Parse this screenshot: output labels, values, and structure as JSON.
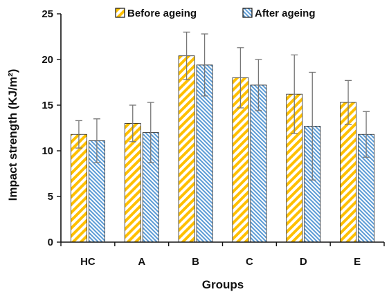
{
  "chart_data": {
    "type": "bar",
    "title": "",
    "xlabel": "Groups",
    "ylabel": "Impact strength (KJ/m²)",
    "ylim": [
      0,
      25
    ],
    "yticks": [
      0,
      5,
      10,
      15,
      20,
      25
    ],
    "grid": false,
    "legend_position": "top",
    "categories": [
      "HC",
      "A",
      "B",
      "C",
      "D",
      "E"
    ],
    "series": [
      {
        "name": "Before ageing",
        "color": "#FFC000",
        "pattern": "diagonal-stripes",
        "values": [
          11.8,
          13.0,
          20.4,
          18.0,
          16.2,
          15.3
        ],
        "error": [
          1.5,
          2.0,
          2.6,
          3.3,
          4.3,
          2.4
        ]
      },
      {
        "name": "After ageing",
        "color": "#5B9BD5",
        "pattern": "fine-diagonal-stripes",
        "values": [
          11.1,
          12.0,
          19.4,
          17.2,
          12.7,
          11.8
        ],
        "error": [
          2.4,
          3.3,
          3.4,
          2.8,
          5.9,
          2.5
        ]
      }
    ]
  }
}
